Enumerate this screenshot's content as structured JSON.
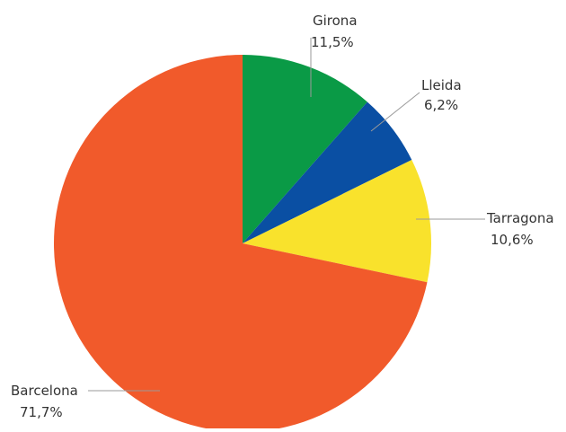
{
  "chart_data": {
    "type": "pie",
    "title": "",
    "slices": [
      {
        "label": "Girona",
        "value": 11.5,
        "value_label": "11,5%",
        "color": "#0a9a46"
      },
      {
        "label": "Lleida",
        "value": 6.2,
        "value_label": "6,2%",
        "color": "#0a4fa3"
      },
      {
        "label": "Tarragona",
        "value": 10.6,
        "value_label": "10,6%",
        "color": "#f9e22c"
      },
      {
        "label": "Barcelona",
        "value": 71.7,
        "value_label": "71,7%",
        "color": "#f15a2b"
      }
    ],
    "start": "top",
    "direction": "clockwise",
    "legend": "none",
    "leader_line_color": "#9a9a9a"
  }
}
